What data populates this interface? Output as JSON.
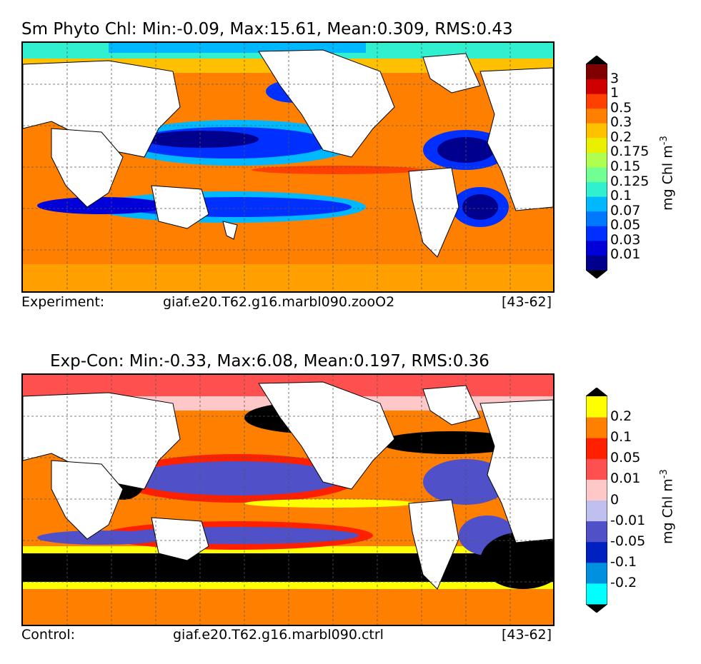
{
  "panel_top": {
    "title": "Sm Phyto Chl: Min:-0.09, Max:15.61, Mean:0.309, RMS:0.43",
    "footer_left": "Experiment:",
    "footer_center": "giaf.e20.T62.g16.marbl090.zooO2",
    "footer_right": "[43-62]",
    "colorbar": {
      "unit": "mg Chl m",
      "unit_exp": "-3",
      "levels": [
        "0.01",
        "0.03",
        "0.05",
        "0.07",
        "0.1",
        "0.125",
        "0.15",
        "0.175",
        "0.2",
        "0.3",
        "0.5",
        "1",
        "3"
      ],
      "colors": [
        "#00008f",
        "#0000d8",
        "#0030ff",
        "#0078ff",
        "#00b8ff",
        "#30f0d0",
        "#70ff90",
        "#b0ff50",
        "#e8f000",
        "#ffc000",
        "#ff8000",
        "#ff4000",
        "#d00000",
        "#800000"
      ],
      "under_color": "#000000",
      "over_color": "#000000"
    }
  },
  "panel_bottom": {
    "title": "Exp-Con: Min:-0.33, Max:6.08, Mean:0.197, RMS:0.36",
    "footer_left": "Control:",
    "footer_center": "giaf.e20.T62.g16.marbl090.ctrl",
    "footer_right": "[43-62]",
    "colorbar": {
      "unit": "mg Chl m",
      "unit_exp": "-3",
      "levels": [
        "-0.2",
        "-0.1",
        "-0.05",
        "-0.01",
        "0",
        "0.01",
        "0.05",
        "0.1",
        "0.2"
      ],
      "colors": [
        "#00ffff",
        "#0090e0",
        "#0020c0",
        "#5050c8",
        "#c0c0f0",
        "#ffc8c8",
        "#ff5050",
        "#ff2000",
        "#ff8000",
        "#ffff00"
      ],
      "under_color": "#000000",
      "over_color": "#000000"
    }
  }
}
